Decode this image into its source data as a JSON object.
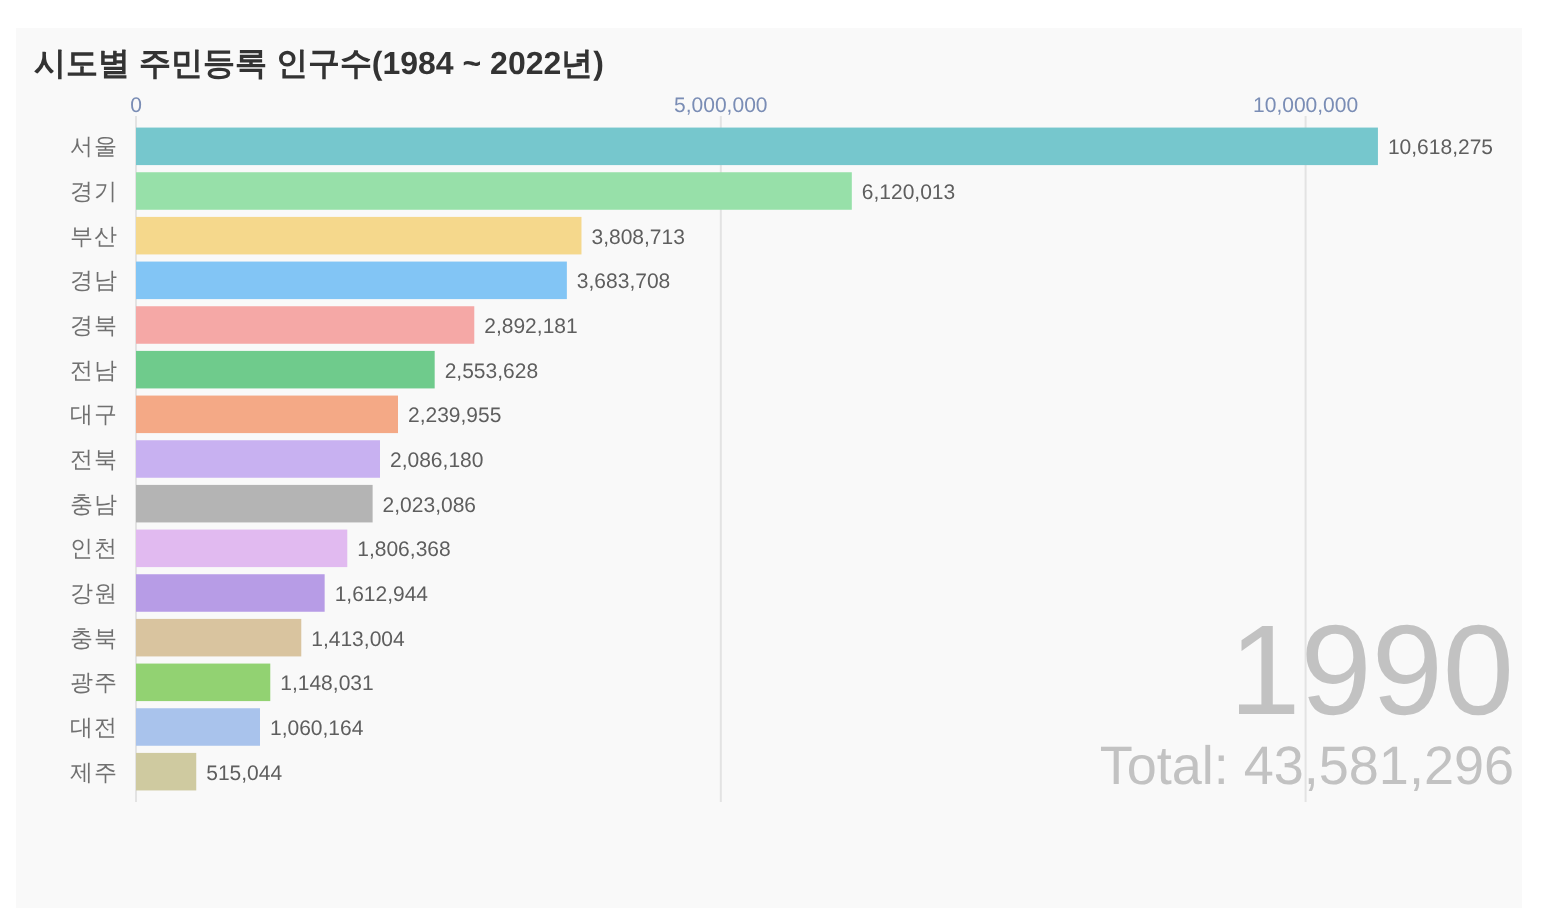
{
  "chart_data": {
    "type": "bar",
    "orientation": "horizontal",
    "title": "시도별 주민등록 인구수(1984 ~ 2022년)",
    "categories": [
      "서울",
      "경기",
      "부산",
      "경남",
      "경북",
      "전남",
      "대구",
      "전북",
      "충남",
      "인천",
      "강원",
      "충북",
      "광주",
      "대전",
      "제주"
    ],
    "values": [
      10618275,
      6120013,
      3808713,
      3683708,
      2892181,
      2553628,
      2239955,
      2086180,
      2023086,
      1806368,
      1612944,
      1413004,
      1148031,
      1060164,
      515044
    ],
    "value_labels": [
      "10,618,275",
      "6,120,013",
      "3,808,713",
      "3,683,708",
      "2,892,181",
      "2,553,628",
      "2,239,955",
      "2,086,180",
      "2,023,086",
      "1,806,368",
      "1,612,944",
      "1,413,004",
      "1,148,031",
      "1,060,164",
      "515,044"
    ],
    "colors": [
      "#76c7cd",
      "#97e0a9",
      "#f5d88c",
      "#82c5f5",
      "#f5a8a6",
      "#6fcb8c",
      "#f4a986",
      "#c8b1f1",
      "#b4b4b4",
      "#e1baf0",
      "#b79ce6",
      "#d9c49f",
      "#92d272",
      "#a9c3ec",
      "#cfcaa0"
    ],
    "xlim": [
      0,
      11850000
    ],
    "xticks": [
      0,
      {
        "value": 5000000,
        "label": "5,000,000"
      },
      {
        "value": 10000000,
        "label": "10,000,000"
      }
    ],
    "grid": "x",
    "annotations": [
      "1990",
      "Total: 43,581,296"
    ]
  }
}
